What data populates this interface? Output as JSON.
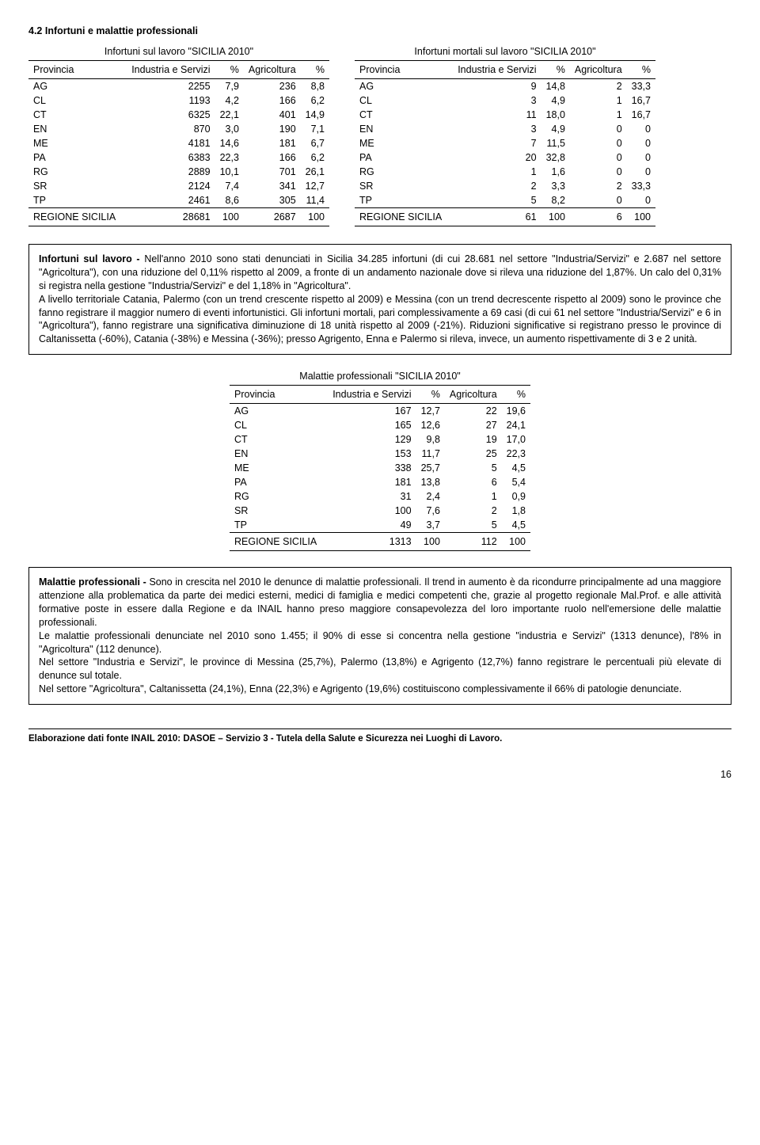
{
  "section_title": "4.2 Infortuni e malattie professionali",
  "table1": {
    "caption": "Infortuni sul lavoro \"SICILIA 2010\"",
    "headers": [
      "Provincia",
      "Industria e Servizi",
      "%",
      "Agricoltura",
      "%"
    ],
    "rows": [
      [
        "AG",
        "2255",
        "7,9",
        "236",
        "8,8"
      ],
      [
        "CL",
        "1193",
        "4,2",
        "166",
        "6,2"
      ],
      [
        "CT",
        "6325",
        "22,1",
        "401",
        "14,9"
      ],
      [
        "EN",
        "870",
        "3,0",
        "190",
        "7,1"
      ],
      [
        "ME",
        "4181",
        "14,6",
        "181",
        "6,7"
      ],
      [
        "PA",
        "6383",
        "22,3",
        "166",
        "6,2"
      ],
      [
        "RG",
        "2889",
        "10,1",
        "701",
        "26,1"
      ],
      [
        "SR",
        "2124",
        "7,4",
        "341",
        "12,7"
      ],
      [
        "TP",
        "2461",
        "8,6",
        "305",
        "11,4"
      ]
    ],
    "footer": [
      "REGIONE SICILIA",
      "28681",
      "100",
      "2687",
      "100"
    ]
  },
  "table2": {
    "caption": "Infortuni mortali sul lavoro \"SICILIA 2010\"",
    "headers": [
      "Provincia",
      "Industria e Servizi",
      "%",
      "Agricoltura",
      "%"
    ],
    "rows": [
      [
        "AG",
        "9",
        "14,8",
        "2",
        "33,3"
      ],
      [
        "CL",
        "3",
        "4,9",
        "1",
        "16,7"
      ],
      [
        "CT",
        "11",
        "18,0",
        "1",
        "16,7"
      ],
      [
        "EN",
        "3",
        "4,9",
        "0",
        "0"
      ],
      [
        "ME",
        "7",
        "11,5",
        "0",
        "0"
      ],
      [
        "PA",
        "20",
        "32,8",
        "0",
        "0"
      ],
      [
        "RG",
        "1",
        "1,6",
        "0",
        "0"
      ],
      [
        "SR",
        "2",
        "3,3",
        "2",
        "33,3"
      ],
      [
        "TP",
        "5",
        "8,2",
        "0",
        "0"
      ]
    ],
    "footer": [
      "REGIONE SICILIA",
      "61",
      "100",
      "6",
      "100"
    ]
  },
  "paragraph1": {
    "lead": "Infortuni sul lavoro - ",
    "body": "Nell'anno 2010 sono stati denunciati in Sicilia 34.285 infortuni (di cui 28.681 nel settore \"Industria/Servizi\" e 2.687 nel settore \"Agricoltura\"), con una riduzione del 0,11% rispetto al 2009, a fronte di un andamento nazionale dove si rileva una riduzione del 1,87%. Un calo del 0,31% si registra nella gestione \"Industria/Servizi\" e del 1,18% in \"Agricoltura\".",
    "p2": "A livello territoriale Catania, Palermo (con un trend crescente rispetto al 2009) e Messina (con un trend decrescente rispetto al 2009) sono le province che fanno registrare il maggior numero di eventi infortunistici. Gli infortuni mortali, pari complessivamente a 69 casi (di cui 61 nel settore \"Industria/Servizi\" e 6 in \"Agricoltura\"), fanno registrare una significativa diminuzione di 18 unità rispetto al 2009 (-21%). Riduzioni significative si registrano presso le province di Caltanissetta (-60%), Catania (-38%) e Messina (-36%); presso Agrigento, Enna e Palermo si rileva, invece, un aumento rispettivamente di 3 e 2 unità."
  },
  "table3": {
    "caption": "Malattie professionali \"SICILIA 2010\"",
    "headers": [
      "Provincia",
      "Industria e Servizi",
      "%",
      "Agricoltura",
      "%"
    ],
    "rows": [
      [
        "AG",
        "167",
        "12,7",
        "22",
        "19,6"
      ],
      [
        "CL",
        "165",
        "12,6",
        "27",
        "24,1"
      ],
      [
        "CT",
        "129",
        "9,8",
        "19",
        "17,0"
      ],
      [
        "EN",
        "153",
        "11,7",
        "25",
        "22,3"
      ],
      [
        "ME",
        "338",
        "25,7",
        "5",
        "4,5"
      ],
      [
        "PA",
        "181",
        "13,8",
        "6",
        "5,4"
      ],
      [
        "RG",
        "31",
        "2,4",
        "1",
        "0,9"
      ],
      [
        "SR",
        "100",
        "7,6",
        "2",
        "1,8"
      ],
      [
        "TP",
        "49",
        "3,7",
        "5",
        "4,5"
      ]
    ],
    "footer": [
      "REGIONE SICILIA",
      "1313",
      "100",
      "112",
      "100"
    ]
  },
  "paragraph2": {
    "lead": "Malattie professionali - ",
    "body": "Sono in crescita nel 2010 le denunce di malattie professionali. Il trend in aumento è da ricondurre principalmente ad una maggiore attenzione alla problematica da parte dei medici esterni, medici di famiglia e medici competenti che, grazie al  progetto regionale Mal.Prof.",
    "bodycmp": " e alle attività formative poste in essere dalla Regione e da INAIL hanno preso maggiore consapevolezza del loro importante ruolo nell'emersione delle malattie professionali.",
    "p2": "Le malattie professionali denunciate nel 2010 sono 1.455; il 90% di esse si concentra nella gestione \"industria e Servizi\" (1313 denunce), l'8% in \"Agricoltura\" (112 denunce).",
    "p3": "Nel settore \"Industria e Servizi\", le province di Messina (25,7%), Palermo (13,8%) e Agrigento (12,7%) fanno registrare le percentuali più elevate di denunce sul totale.",
    "p4": "Nel settore \"Agricoltura\", Caltanissetta (24,1%), Enna (22,3%) e Agrigento (19,6%) costituiscono complessivamente il 66% di patologie denunciate."
  },
  "footer_note": "Elaborazione dati fonte INAIL 2010: DASOE – Servizio 3 - Tutela della Salute e Sicurezza nei Luoghi di Lavoro.",
  "page_num": "16"
}
